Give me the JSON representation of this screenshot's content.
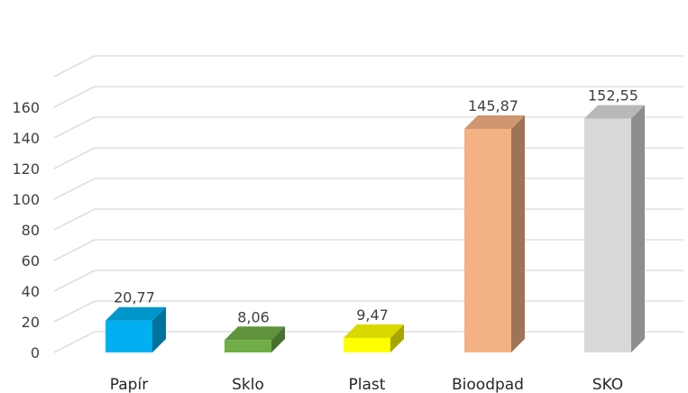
{
  "chart_data": {
    "type": "bar",
    "categories": [
      "Papír",
      "Sklo",
      "Plast",
      "Bioodpad",
      "SKO"
    ],
    "values": [
      20.77,
      8.06,
      9.47,
      145.87,
      152.55
    ],
    "data_labels": [
      "20,77",
      "8,06",
      "9,47",
      "145,87",
      "152,55"
    ],
    "y_ticks": [
      "0",
      "20",
      "40",
      "60",
      "80",
      "100",
      "120",
      "140",
      "160"
    ],
    "ylim": [
      0,
      180
    ],
    "grid": true,
    "three_d": true,
    "colors": [
      "#00b0f0",
      "#70ad47",
      "#ffff00",
      "#f4b183",
      "#d9d9d9"
    ]
  }
}
